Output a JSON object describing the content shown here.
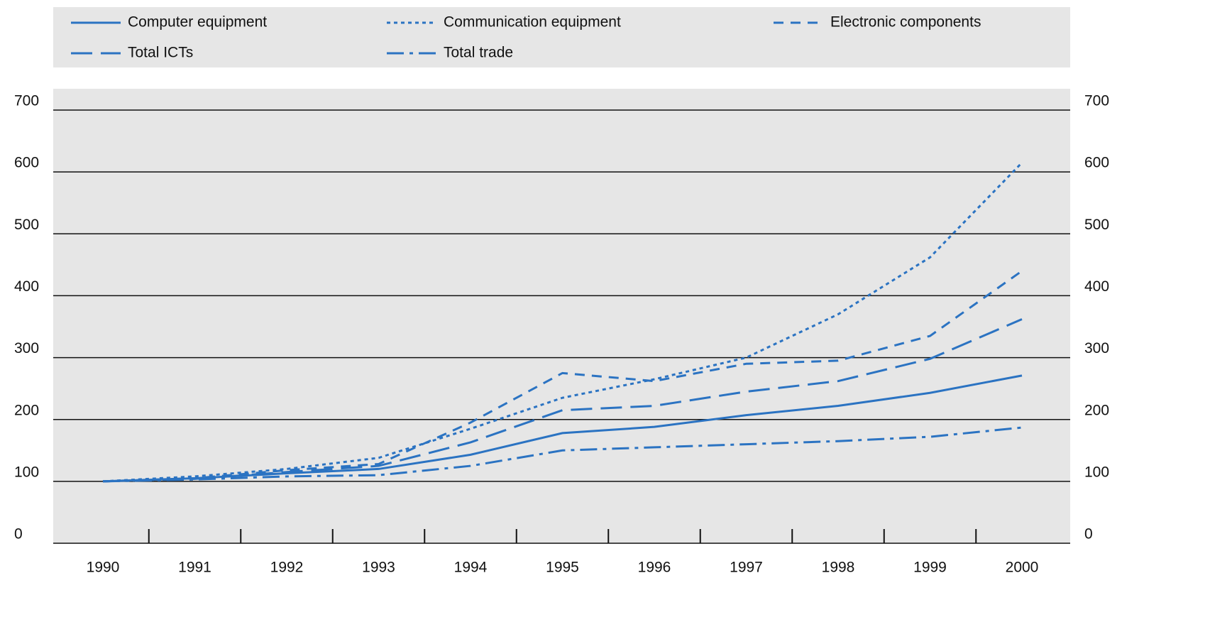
{
  "chart_data": {
    "type": "line",
    "categories": [
      "1990",
      "1991",
      "1992",
      "1993",
      "1994",
      "1995",
      "1996",
      "1997",
      "1998",
      "1999",
      "2000"
    ],
    "series": [
      {
        "name": "Computer equipment",
        "color": "#2b73c2",
        "dash": "solid",
        "values": [
          100,
          105,
          113,
          120,
          143,
          178,
          188,
          207,
          222,
          243,
          271
        ]
      },
      {
        "name": "Communication equipment",
        "color": "#2b73c2",
        "dash": "dotted",
        "values": [
          100,
          108,
          120,
          138,
          185,
          235,
          265,
          300,
          370,
          462,
          615
        ]
      },
      {
        "name": "Electronic components",
        "color": "#2b73c2",
        "dash": "dashed",
        "values": [
          100,
          105,
          118,
          128,
          195,
          275,
          262,
          290,
          295,
          335,
          440
        ]
      },
      {
        "name": "Total ICTs",
        "color": "#2b73c2",
        "dash": "longdash",
        "values": [
          100,
          104,
          115,
          125,
          163,
          215,
          222,
          245,
          262,
          298,
          362
        ]
      },
      {
        "name": "Total trade",
        "color": "#2b73c2",
        "dash": "dashdot",
        "values": [
          100,
          103,
          108,
          110,
          125,
          150,
          155,
          160,
          165,
          172,
          187
        ]
      }
    ],
    "ylim": [
      0,
      700
    ],
    "yticks": [
      0,
      100,
      200,
      300,
      400,
      500,
      600,
      700
    ],
    "grid": true,
    "legend": "top"
  }
}
